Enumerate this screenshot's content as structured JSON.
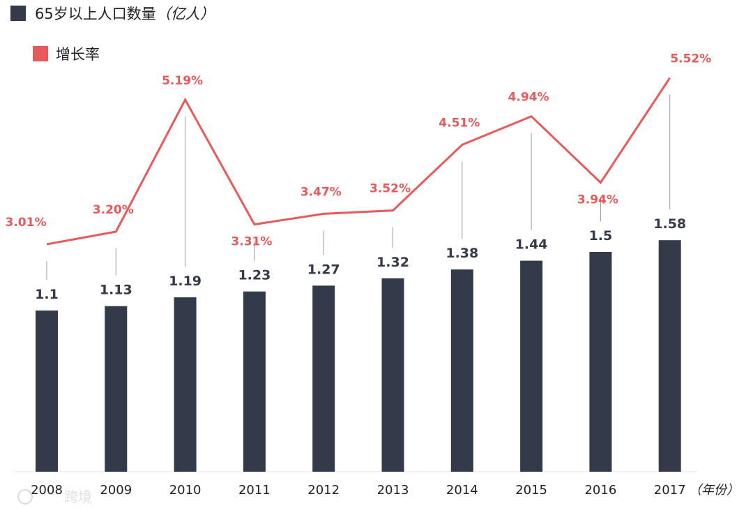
{
  "legend": {
    "population_label": "65岁以上人口数量",
    "population_unit": "（亿人）",
    "rate_label": "增长率",
    "population_color": "#333a4a",
    "rate_color": "#e8595a"
  },
  "x_unit": "（年份）",
  "watermark": "跨境",
  "chart_data": {
    "type": "bar",
    "categories": [
      "2008",
      "2009",
      "2010",
      "2011",
      "2012",
      "2013",
      "2014",
      "2015",
      "2016",
      "2017"
    ],
    "series": [
      {
        "name": "65岁以上人口数量",
        "type": "bar",
        "values": [
          1.1,
          1.13,
          1.19,
          1.23,
          1.27,
          1.32,
          1.38,
          1.44,
          1.5,
          1.58
        ],
        "labels": [
          "1.1",
          "1.13",
          "1.19",
          "1.23",
          "1.27",
          "1.32",
          "1.38",
          "1.44",
          "1.5",
          "1.58"
        ],
        "color": "#333a4a"
      },
      {
        "name": "增长率",
        "type": "line",
        "values": [
          3.01,
          3.2,
          5.19,
          3.31,
          3.47,
          3.52,
          4.51,
          4.94,
          3.94,
          5.52
        ],
        "labels": [
          "3.01%",
          "3.20%",
          "5.19%",
          "3.31%",
          "3.47%",
          "3.52%",
          "4.51%",
          "4.94%",
          "3.94%",
          "5.52%"
        ],
        "color": "#e8595a"
      }
    ],
    "legend_position": "top-left",
    "grid": false
  }
}
